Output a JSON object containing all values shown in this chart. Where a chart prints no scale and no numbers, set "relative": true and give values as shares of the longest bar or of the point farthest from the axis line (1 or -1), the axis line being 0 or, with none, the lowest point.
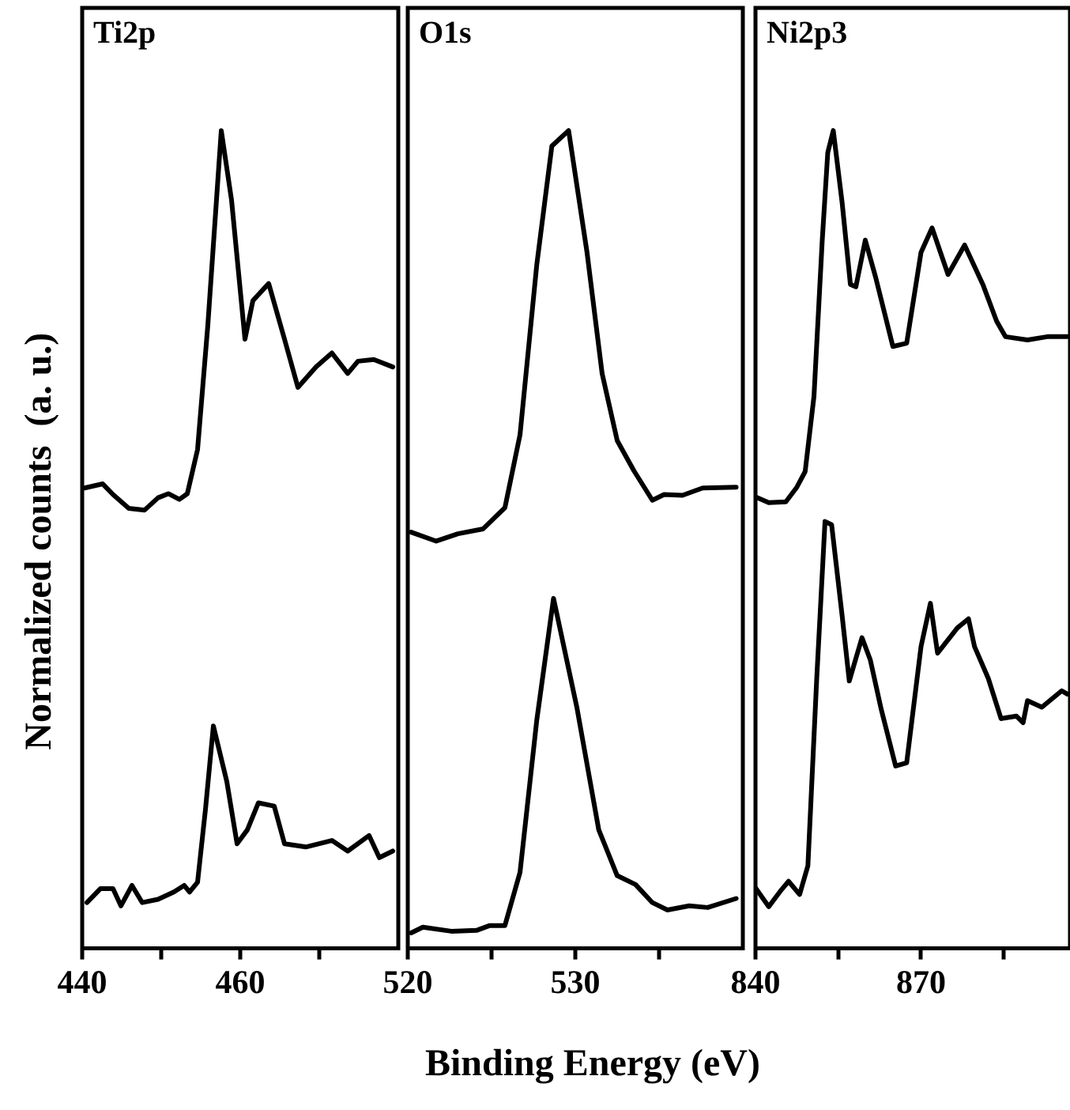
{
  "chart_data": [
    {
      "type": "line",
      "title": "Ti2p",
      "ylabel": "Normalized counts  (a. u.)",
      "relative": true,
      "marker": "none",
      "xlim": [
        440,
        480
      ],
      "xticks": [
        440,
        {
          "value": 450,
          "label": null
        },
        460,
        {
          "value": 470,
          "label": null
        }
      ],
      "series": [
        {
          "color": "#000000",
          "x": [
            440.3,
            442.6,
            443.9,
            445.9,
            447.9,
            449.6,
            450.9,
            452.3,
            453.3,
            454.6,
            455.9,
            457.6,
            458.9,
            460.6,
            461.6,
            463.6,
            465.6,
            467.3,
            469.6,
            471.6,
            473.6,
            474.9,
            476.9,
            479.3
          ],
          "values": [
            0.563,
            0.568,
            0.555,
            0.538,
            0.536,
            0.551,
            0.556,
            0.549,
            0.556,
            0.61,
            0.762,
            1.0,
            0.915,
            0.745,
            0.792,
            0.813,
            0.745,
            0.686,
            0.711,
            0.728,
            0.703,
            0.718,
            0.72,
            0.711
          ]
        },
        {
          "color": "#000000",
          "x": [
            440.6,
            442.3,
            443.9,
            444.9,
            446.3,
            447.6,
            449.6,
            451.6,
            452.9,
            453.6,
            454.6,
            455.6,
            456.6,
            458.3,
            459.6,
            460.9,
            462.3,
            464.3,
            465.6,
            468.3,
            471.6,
            473.6,
            476.3,
            477.6,
            479.3
          ],
          "values": [
            0.056,
            0.073,
            0.073,
            0.052,
            0.077,
            0.056,
            0.06,
            0.069,
            0.077,
            0.069,
            0.081,
            0.17,
            0.272,
            0.204,
            0.128,
            0.145,
            0.178,
            0.174,
            0.128,
            0.124,
            0.132,
            0.119,
            0.138,
            0.111,
            0.119
          ]
        }
      ]
    },
    {
      "type": "line",
      "title": "O1s",
      "xlabel": "Binding Energy (eV)",
      "relative": true,
      "marker": "none",
      "xlim": [
        520,
        540
      ],
      "xticks": [
        520,
        {
          "value": 525,
          "label": null
        },
        530,
        {
          "value": 535,
          "label": null
        }
      ],
      "series": [
        {
          "color": "#000000",
          "x": [
            520.2,
            521.7,
            523.0,
            524.5,
            525.8,
            526.7,
            527.7,
            528.6,
            529.6,
            530.7,
            531.6,
            532.5,
            533.5,
            534.6,
            535.3,
            536.4,
            537.6,
            539.6
          ],
          "values": [
            0.509,
            0.498,
            0.507,
            0.513,
            0.539,
            0.628,
            0.836,
            0.981,
            1.0,
            0.851,
            0.703,
            0.621,
            0.584,
            0.548,
            0.555,
            0.554,
            0.563,
            0.564
          ]
        },
        {
          "color": "#000000",
          "x": [
            520.2,
            520.9,
            522.6,
            524.1,
            524.9,
            525.8,
            526.7,
            527.7,
            528.7,
            530.1,
            531.4,
            532.5,
            533.6,
            534.6,
            535.5,
            536.8,
            537.9,
            539.6
          ],
          "values": [
            0.019,
            0.026,
            0.021,
            0.022,
            0.028,
            0.028,
            0.093,
            0.279,
            0.428,
            0.294,
            0.145,
            0.089,
            0.078,
            0.056,
            0.047,
            0.052,
            0.05,
            0.061
          ]
        }
      ]
    },
    {
      "type": "line",
      "title": "Ni2p3",
      "relative": true,
      "marker": "none",
      "xlim": [
        840,
        897
      ],
      "xticks": [
        840,
        {
          "value": 855,
          "label": null
        },
        870,
        {
          "value": 885,
          "label": null
        }
      ],
      "series": [
        {
          "color": "#000000",
          "x": [
            840.0,
            842.4,
            845.5,
            847.5,
            849.0,
            850.6,
            852.1,
            853.1,
            854.1,
            855.7,
            857.2,
            858.2,
            859.9,
            861.8,
            864.9,
            867.4,
            870.0,
            872.0,
            874.9,
            877.9,
            881.2,
            883.7,
            885.3,
            889.3,
            892.9,
            896.5
          ],
          "values": [
            0.552,
            0.545,
            0.546,
            0.564,
            0.583,
            0.675,
            0.866,
            0.973,
            1.0,
            0.912,
            0.812,
            0.809,
            0.866,
            0.82,
            0.736,
            0.74,
            0.851,
            0.881,
            0.824,
            0.86,
            0.812,
            0.767,
            0.748,
            0.744,
            0.748,
            0.748
          ]
        },
        {
          "color": "#000000",
          "x": [
            840.0,
            842.4,
            844.5,
            846.0,
            848.0,
            849.5,
            851.1,
            852.6,
            853.8,
            855.7,
            857.0,
            859.3,
            860.8,
            862.8,
            865.4,
            867.4,
            870.0,
            871.7,
            873.0,
            876.6,
            878.6,
            879.7,
            882.2,
            884.5,
            887.3,
            888.5,
            889.3,
            891.9,
            895.5,
            896.5
          ],
          "values": [
            0.074,
            0.051,
            0.07,
            0.082,
            0.066,
            0.101,
            0.33,
            0.522,
            0.518,
            0.407,
            0.327,
            0.38,
            0.353,
            0.292,
            0.223,
            0.227,
            0.369,
            0.422,
            0.361,
            0.392,
            0.403,
            0.369,
            0.33,
            0.281,
            0.284,
            0.276,
            0.303,
            0.295,
            0.315,
            0.311
          ]
        }
      ]
    }
  ]
}
